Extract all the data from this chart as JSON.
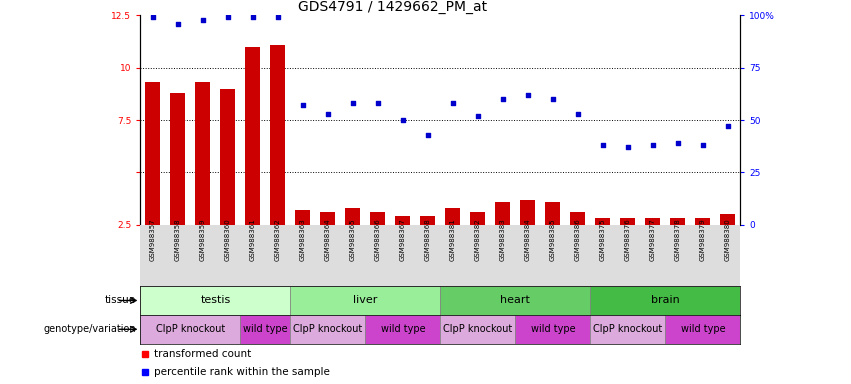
{
  "title": "GDS4791 / 1429662_PM_at",
  "samples": [
    "GSM988357",
    "GSM988358",
    "GSM988359",
    "GSM988360",
    "GSM988361",
    "GSM988362",
    "GSM988363",
    "GSM988364",
    "GSM988365",
    "GSM988366",
    "GSM988367",
    "GSM988368",
    "GSM988381",
    "GSM988382",
    "GSM988383",
    "GSM988384",
    "GSM988385",
    "GSM988386",
    "GSM988375",
    "GSM988376",
    "GSM988377",
    "GSM988378",
    "GSM988379",
    "GSM988380"
  ],
  "bar_values": [
    9.3,
    8.8,
    9.3,
    9.0,
    11.0,
    11.1,
    3.2,
    3.1,
    3.3,
    3.1,
    2.9,
    2.9,
    3.3,
    3.1,
    3.6,
    3.7,
    3.6,
    3.1,
    2.8,
    2.8,
    2.8,
    2.8,
    2.8,
    3.0
  ],
  "dot_values": [
    99,
    96,
    98,
    99,
    99,
    99,
    57,
    53,
    58,
    58,
    50,
    43,
    58,
    52,
    60,
    62,
    60,
    53,
    38,
    37,
    38,
    39,
    38,
    47
  ],
  "bar_color": "#cc0000",
  "dot_color": "#0000cc",
  "ylim_left": [
    2.5,
    12.5
  ],
  "ylim_right": [
    0,
    100
  ],
  "yticks_left": [
    2.5,
    5.0,
    7.5,
    10.0,
    12.5
  ],
  "yticks_right": [
    0,
    25,
    50,
    75,
    100
  ],
  "ytick_labels_left": [
    "2.5",
    "",
    "7.5",
    "10",
    "12.5"
  ],
  "ytick_labels_right": [
    "0",
    "25",
    "50",
    "75",
    "100%"
  ],
  "grid_values": [
    5.0,
    7.5,
    10.0
  ],
  "tissues": [
    {
      "label": "testis",
      "start": 0,
      "end": 6,
      "color": "#ccffcc"
    },
    {
      "label": "liver",
      "start": 6,
      "end": 12,
      "color": "#99ee99"
    },
    {
      "label": "heart",
      "start": 12,
      "end": 18,
      "color": "#66cc66"
    },
    {
      "label": "brain",
      "start": 18,
      "end": 24,
      "color": "#44bb44"
    }
  ],
  "genotypes": [
    {
      "label": "ClpP knockout",
      "start": 0,
      "end": 4,
      "color": "#ddaadd"
    },
    {
      "label": "wild type",
      "start": 4,
      "end": 6,
      "color": "#cc44cc"
    },
    {
      "label": "ClpP knockout",
      "start": 6,
      "end": 9,
      "color": "#ddaadd"
    },
    {
      "label": "wild type",
      "start": 9,
      "end": 12,
      "color": "#cc44cc"
    },
    {
      "label": "ClpP knockout",
      "start": 12,
      "end": 15,
      "color": "#ddaadd"
    },
    {
      "label": "wild type",
      "start": 15,
      "end": 18,
      "color": "#cc44cc"
    },
    {
      "label": "ClpP knockout",
      "start": 18,
      "end": 21,
      "color": "#ddaadd"
    },
    {
      "label": "wild type",
      "start": 21,
      "end": 24,
      "color": "#cc44cc"
    }
  ],
  "tick_fontsize": 6.5,
  "title_fontsize": 10,
  "xtick_fontsize": 5.0,
  "label_fontsize": 7.5,
  "tissue_fontsize": 8,
  "geno_fontsize": 7,
  "legend_fontsize": 7.5,
  "bg_color": "#dddddd"
}
